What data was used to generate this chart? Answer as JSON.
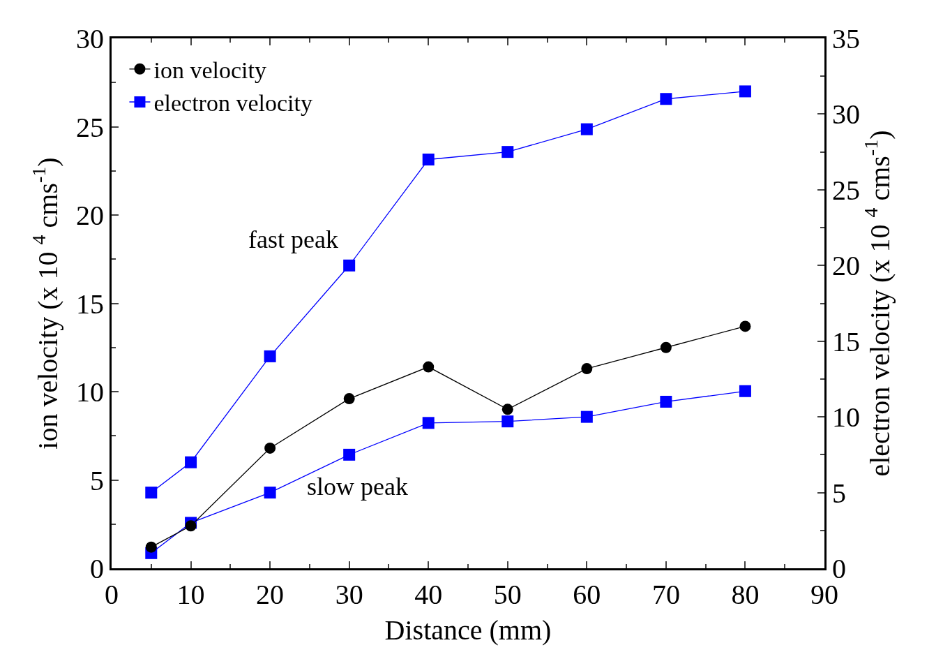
{
  "chart_data": {
    "type": "line",
    "xlabel": "Distance (mm)",
    "ylabel": "ion velocity (x 10 $^{4}$ cms$^{-1}$)",
    "y2label": "electron velocity (x 10 $^{4}$ cms$^{-1}$)",
    "x": [
      5,
      10,
      20,
      30,
      40,
      50,
      60,
      70,
      80
    ],
    "series": [
      {
        "name": "ion velocity",
        "color": "#000000",
        "marker": "circle",
        "values": [
          1.2,
          2.4,
          6.8,
          9.6,
          11.4,
          9.0,
          11.3,
          12.5,
          13.7
        ]
      },
      {
        "name": "electron velocity",
        "color": "#0000ff",
        "marker": "square",
        "axis": "y2",
        "values": [
          5.0,
          7.0,
          14.0,
          20.0,
          27.0,
          27.5,
          29.0,
          31.0,
          31.5
        ]
      },
      {
        "color": "#0000ff",
        "marker": "square",
        "axis": "y2",
        "values": [
          1.0,
          3.0,
          5.0,
          7.5,
          9.6,
          9.7,
          10.0,
          11.0,
          11.7
        ]
      }
    ],
    "xlim": [
      0,
      90
    ],
    "xticks": [
      0,
      10,
      20,
      30,
      40,
      50,
      60,
      70,
      80,
      90
    ],
    "ylim": [
      0,
      30
    ],
    "yticks": [
      0,
      5,
      10,
      15,
      20,
      25,
      30
    ],
    "y2lim": [
      0,
      35
    ],
    "y2ticks": [
      0,
      5,
      10,
      15,
      20,
      25,
      30,
      35
    ],
    "annotations": [
      "fast peak",
      "slow peak"
    ],
    "legend": "top left"
  }
}
